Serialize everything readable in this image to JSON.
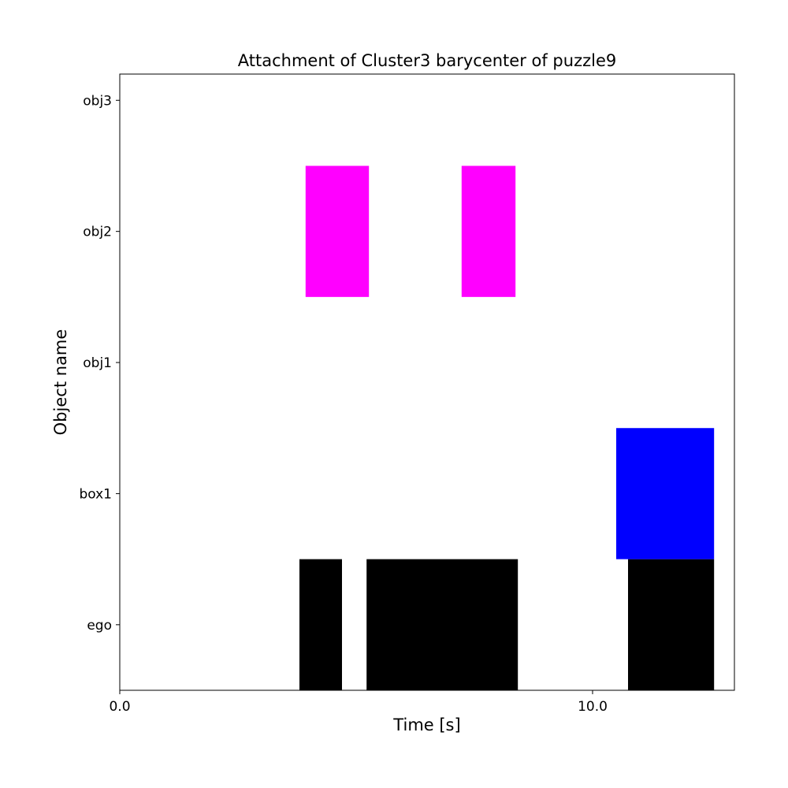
{
  "chart_data": {
    "type": "gantt",
    "title": "Attachment of Cluster3 barycenter of puzzle9",
    "xlabel": "Time [s]",
    "ylabel": "Object name",
    "xlim": [
      0,
      13
    ],
    "ylim": [
      -0.5,
      4.2
    ],
    "x_ticks": [
      {
        "value": 0,
        "label": "0.0"
      },
      {
        "value": 10,
        "label": "10.0"
      }
    ],
    "y_ticks": [
      {
        "value": 0,
        "label": "ego"
      },
      {
        "value": 1,
        "label": "box1"
      },
      {
        "value": 2,
        "label": "obj1"
      },
      {
        "value": 3,
        "label": "obj2"
      },
      {
        "value": 4,
        "label": "obj3"
      }
    ],
    "grid": false,
    "bars": [
      {
        "row": "ego",
        "row_index": 0,
        "start": 3.8,
        "end": 4.7,
        "color": "#000000"
      },
      {
        "row": "ego",
        "row_index": 0,
        "start": 5.22,
        "end": 8.42,
        "color": "#000000"
      },
      {
        "row": "ego",
        "row_index": 0,
        "start": 10.75,
        "end": 12.57,
        "color": "#000000"
      },
      {
        "row": "box1",
        "row_index": 1,
        "start": 10.5,
        "end": 12.57,
        "color": "#0000ff"
      },
      {
        "row": "obj2",
        "row_index": 3,
        "start": 3.93,
        "end": 5.27,
        "color": "#ff00ff"
      },
      {
        "row": "obj2",
        "row_index": 3,
        "start": 7.23,
        "end": 8.37,
        "color": "#ff00ff"
      }
    ]
  }
}
